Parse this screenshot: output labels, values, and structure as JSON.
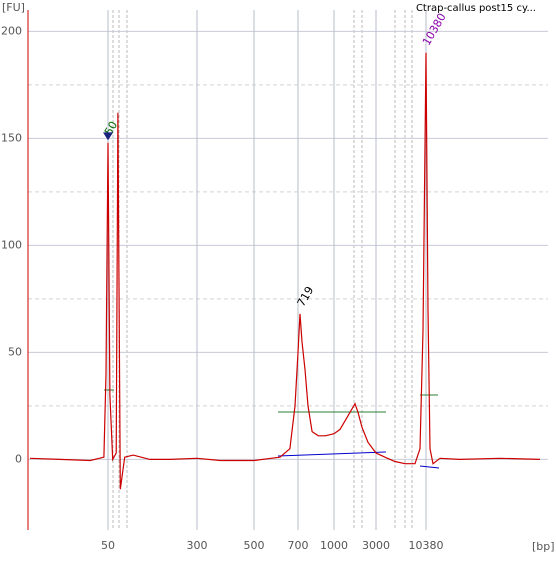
{
  "chart_data": {
    "type": "line",
    "title": "Ctrap-callus post15 cy...",
    "y_label": "[FU]",
    "x_label": "[bp]",
    "x": [
      10.4,
      19,
      35,
      46,
      48,
      50,
      52,
      55,
      59,
      61,
      64,
      70,
      83,
      116,
      174,
      300,
      369,
      500,
      610,
      658,
      684,
      700,
      714,
      728,
      750,
      773,
      805,
      855,
      917,
      1000,
      1170,
      1333,
      1520,
      1732,
      1873,
      2080,
      2433,
      3000,
      3751,
      4807,
      6162,
      7896,
      8937,
      9640,
      10380,
      10908,
      11470,
      12350,
      14690,
      24150,
      65150,
      176000
    ],
    "series": [
      {
        "color": "#cc0000",
        "values": [
          0.5,
          0,
          -0.5,
          1,
          40,
          148,
          30,
          0,
          3,
          162,
          -14,
          1,
          2,
          0,
          0,
          0.5,
          -0.5,
          -0.5,
          1,
          5,
          25,
          50,
          68,
          55,
          42,
          25,
          13,
          11,
          11,
          12,
          14,
          18,
          22,
          26,
          22,
          15,
          8,
          3,
          1,
          -1,
          -2,
          -2,
          5,
          60,
          190,
          70,
          5,
          -2,
          0.5,
          0,
          0.5,
          0
        ]
      }
    ],
    "xlim": [
      10,
      200000
    ],
    "xticks": [
      50,
      300,
      500,
      700,
      1000,
      3000,
      10380
    ],
    "ylim": [
      -33,
      210
    ],
    "yticks": [
      0,
      50,
      100,
      150,
      200
    ],
    "peak_labels": [
      50,
      719,
      10380
    ],
    "peak_label_colors": [
      "#006600",
      "#000000",
      "#8800aa"
    ],
    "grid": true
  }
}
